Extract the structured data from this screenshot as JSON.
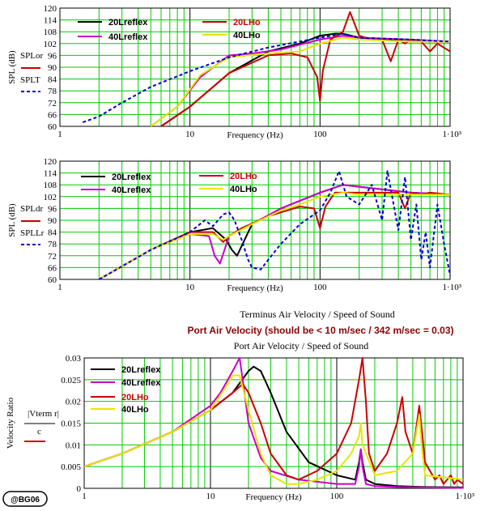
{
  "watermark": "@BG06",
  "chart_data": [
    {
      "type": "line",
      "xscale": "log",
      "xlim": [
        1,
        1000
      ],
      "ylim": [
        60,
        120
      ],
      "x_ticks": [
        "1",
        "10",
        "100",
        "1·10³"
      ],
      "y_ticks": [
        "60",
        "66",
        "72",
        "78",
        "84",
        "90",
        "96",
        "102",
        "108",
        "114",
        "120"
      ],
      "xlabel": "Frequency (Hz)",
      "ylabel": "SPL (dB)",
      "y_vars": [
        "SPLor",
        "SPLT"
      ],
      "grid": true,
      "legend_placement": "top-left",
      "series": [
        {
          "name": "20Lreflex",
          "color": "#000000",
          "x": [
            6,
            10,
            20,
            40,
            70,
            100,
            130,
            150,
            200,
            300,
            500,
            700,
            1000
          ],
          "y": [
            60,
            70,
            87,
            98,
            102,
            106,
            107,
            107,
            105,
            104,
            103,
            103,
            103
          ]
        },
        {
          "name": "40Lreflex",
          "color": "#cc00cc",
          "x": [
            5,
            8,
            12,
            20,
            30,
            50,
            100,
            150,
            200,
            500,
            1000
          ],
          "y": [
            60,
            70,
            85,
            96,
            97,
            99,
            104,
            106,
            105,
            104,
            103
          ]
        },
        {
          "name": "20LHo",
          "color": "#cc0000",
          "x": [
            6,
            10,
            20,
            40,
            60,
            80,
            95,
            100,
            105,
            120,
            150,
            170,
            200,
            250,
            300,
            350,
            400,
            450,
            500,
            600,
            700,
            800,
            1000
          ],
          "y": [
            60,
            70,
            87,
            96,
            97,
            95,
            85,
            73,
            88,
            104,
            108,
            118,
            106,
            104,
            104,
            93,
            104,
            102,
            104,
            103,
            98,
            102,
            98
          ]
        },
        {
          "name": "40LHo",
          "color": "#e6e600",
          "x": [
            5,
            8,
            12,
            20,
            40,
            70,
            100,
            150,
            200,
            500,
            1000
          ],
          "y": [
            60,
            70,
            86,
            95,
            97,
            98,
            102,
            105,
            104,
            103,
            103
          ]
        },
        {
          "name": "SPLT",
          "color": "#0000cc",
          "dashed": true,
          "x": [
            1.5,
            2,
            3,
            5,
            10,
            20,
            40,
            100,
            150,
            200,
            500,
            1000
          ],
          "y": [
            62,
            65,
            72,
            80,
            88,
            95,
            100,
            105,
            107,
            105,
            104,
            103
          ]
        }
      ]
    },
    {
      "type": "line",
      "xscale": "log",
      "xlim": [
        1,
        1000
      ],
      "ylim": [
        60,
        120
      ],
      "x_ticks": [
        "1",
        "10",
        "100",
        "1·10³"
      ],
      "y_ticks": [
        "60",
        "66",
        "72",
        "78",
        "84",
        "90",
        "96",
        "102",
        "108",
        "114",
        "120"
      ],
      "xlabel": "Frequency (Hz)",
      "ylabel": "SPL (dB)",
      "y_vars": [
        "SPLdr",
        "SPLLr"
      ],
      "grid": true,
      "legend_placement": "top-left",
      "series": [
        {
          "name": "20Lreflex",
          "color": "#000000",
          "x": [
            2,
            5,
            10,
            15,
            19,
            21,
            23,
            30,
            50,
            100,
            150,
            200,
            500,
            1000
          ],
          "y": [
            60,
            75,
            84,
            86,
            80,
            75,
            72,
            88,
            96,
            104,
            108,
            107,
            104,
            103
          ]
        },
        {
          "name": "40Lreflex",
          "color": "#cc00cc",
          "x": [
            2,
            5,
            10,
            14,
            15.5,
            17,
            20,
            30,
            50,
            100,
            150,
            200,
            500,
            1000
          ],
          "y": [
            60,
            75,
            83,
            82,
            72,
            68,
            82,
            88,
            96,
            104,
            108,
            107,
            104,
            103
          ]
        },
        {
          "name": "20LHo",
          "color": "#cc0000",
          "x": [
            2,
            5,
            10,
            15,
            18,
            20,
            25,
            40,
            70,
            90,
            100,
            110,
            130,
            200,
            300,
            400,
            450,
            500,
            600,
            700,
            1000
          ],
          "y": [
            60,
            75,
            84,
            84,
            79,
            82,
            86,
            92,
            97,
            96,
            86,
            97,
            104,
            104,
            104,
            104,
            96,
            104,
            103,
            104,
            103
          ]
        },
        {
          "name": "40LHo",
          "color": "#e6e600",
          "x": [
            2,
            5,
            10,
            15,
            18,
            20,
            30,
            50,
            70,
            100,
            150,
            200,
            500,
            1000
          ],
          "y": [
            60,
            75,
            83,
            83,
            80,
            82,
            88,
            95,
            98,
            102,
            104,
            103,
            103,
            103
          ]
        },
        {
          "name": "SPLLr",
          "color": "#0000cc",
          "dashed": true,
          "x": [
            2,
            5,
            10,
            13,
            15,
            18,
            20,
            22,
            25,
            28,
            30,
            35,
            40,
            50,
            70,
            100,
            120,
            140,
            160,
            200,
            250,
            300,
            330,
            400,
            450,
            500,
            550,
            600,
            650,
            700,
            800,
            900,
            1000
          ],
          "y": [
            60,
            75,
            84,
            90,
            87,
            93,
            94,
            90,
            80,
            70,
            66,
            65,
            70,
            78,
            88,
            95,
            104,
            115,
            102,
            98,
            108,
            90,
            115,
            85,
            112,
            80,
            98,
            70,
            84,
            66,
            98,
            78,
            62
          ]
        }
      ]
    },
    {
      "type": "line",
      "title": "Terminus Air Velocity / Speed of Sound",
      "subtitle": "Port Air Velocity (should be < 10 m/sec / 342 m/sec = 0.03)",
      "plot_title": "Port Air Velocity / Speed of Sound",
      "xscale": "log",
      "xlim": [
        1,
        1000
      ],
      "ylim": [
        0,
        0.03
      ],
      "x_ticks": [
        "1",
        "10",
        "100",
        "1·10³"
      ],
      "y_ticks": [
        "0",
        "0.005",
        "0.01",
        "0.015",
        "0.02",
        "0.025",
        "0.03"
      ],
      "xlabel": "Frequency (Hz)",
      "ylabel": "Velocity Ratio",
      "y_var_top": "|Vterm r|",
      "y_var_bottom": "c",
      "grid": true,
      "legend_placement": "top-left",
      "series": [
        {
          "name": "20Lreflex",
          "color": "#000000",
          "x": [
            1,
            2,
            5,
            10,
            15,
            20,
            22,
            25,
            30,
            40,
            60,
            100,
            140,
            150,
            155,
            160,
            170,
            200,
            300,
            500,
            1000
          ],
          "y": [
            0.005,
            0.008,
            0.013,
            0.018,
            0.022,
            0.027,
            0.028,
            0.027,
            0.022,
            0.013,
            0.006,
            0.003,
            0.002,
            0.006,
            0.009,
            0.006,
            0.002,
            0.001,
            0.0005,
            0.0003,
            0.0002
          ]
        },
        {
          "name": "40Lreflex",
          "color": "#cc00cc",
          "x": [
            1,
            2,
            5,
            10,
            12,
            15,
            17,
            18,
            20,
            25,
            30,
            50,
            100,
            140,
            150,
            155,
            160,
            170,
            200,
            300,
            500,
            1000
          ],
          "y": [
            0.005,
            0.008,
            0.013,
            0.019,
            0.022,
            0.027,
            0.03,
            0.025,
            0.015,
            0.007,
            0.004,
            0.002,
            0.001,
            0.001,
            0.005,
            0.009,
            0.005,
            0.001,
            0.0005,
            0.0003,
            0.0002,
            0.0001
          ]
        },
        {
          "name": "20LHo",
          "color": "#cc0000",
          "x": [
            1,
            2,
            5,
            10,
            15,
            18,
            20,
            25,
            30,
            40,
            50,
            70,
            100,
            130,
            150,
            160,
            170,
            180,
            200,
            250,
            300,
            330,
            350,
            400,
            450,
            470,
            500,
            600,
            650,
            700,
            800,
            850,
            900,
            1000
          ],
          "y": [
            0.005,
            0.008,
            0.013,
            0.018,
            0.022,
            0.024,
            0.022,
            0.015,
            0.008,
            0.003,
            0.002,
            0.004,
            0.008,
            0.015,
            0.025,
            0.03,
            0.02,
            0.008,
            0.004,
            0.008,
            0.015,
            0.021,
            0.013,
            0.008,
            0.019,
            0.014,
            0.006,
            0.002,
            0.003,
            0.001,
            0.003,
            0.001,
            0.002,
            0.001
          ]
        },
        {
          "name": "40LHo",
          "color": "#e6e600",
          "x": [
            1,
            2,
            5,
            10,
            13,
            15,
            17,
            20,
            25,
            30,
            40,
            50,
            70,
            100,
            130,
            150,
            155,
            160,
            200,
            300,
            400,
            450,
            470,
            500,
            1000
          ],
          "y": [
            0.005,
            0.008,
            0.013,
            0.018,
            0.023,
            0.026,
            0.026,
            0.018,
            0.008,
            0.003,
            0.001,
            0.001,
            0.002,
            0.004,
            0.008,
            0.012,
            0.015,
            0.01,
            0.003,
            0.004,
            0.008,
            0.017,
            0.01,
            0.003,
            0.002
          ]
        }
      ]
    }
  ]
}
